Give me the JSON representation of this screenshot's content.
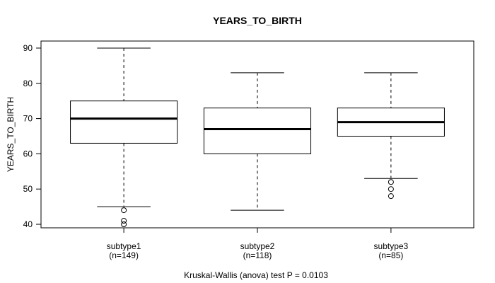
{
  "chart_data": {
    "type": "boxplot",
    "title": "YEARS_TO_BIRTH",
    "ylabel": "YEARS_TO_BIRTH",
    "xlabel": "",
    "yticks": [
      40,
      50,
      60,
      70,
      80,
      90
    ],
    "ylim": [
      39,
      92
    ],
    "grid": false,
    "annotation": "Kruskal-Wallis (anova) test P = 0.0103",
    "groups": [
      {
        "label": "subtype1",
        "n_label": "(n=149)",
        "n": 149,
        "lower_whisker": 45,
        "q1": 63,
        "median": 70,
        "q3": 75,
        "upper_whisker": 90,
        "outliers": [
          44,
          41,
          40
        ]
      },
      {
        "label": "subtype2",
        "n_label": "(n=118)",
        "n": 118,
        "lower_whisker": 44,
        "q1": 60,
        "median": 67,
        "q3": 73,
        "upper_whisker": 83,
        "outliers": []
      },
      {
        "label": "subtype3",
        "n_label": "(n=85)",
        "n": 85,
        "lower_whisker": 53,
        "q1": 65,
        "median": 69,
        "q3": 73,
        "upper_whisker": 83,
        "outliers": [
          52,
          50,
          48
        ]
      }
    ],
    "colors": {
      "line": "#000000",
      "text": "#000000",
      "box_fill": "#ffffff",
      "background": "#ffffff"
    }
  }
}
